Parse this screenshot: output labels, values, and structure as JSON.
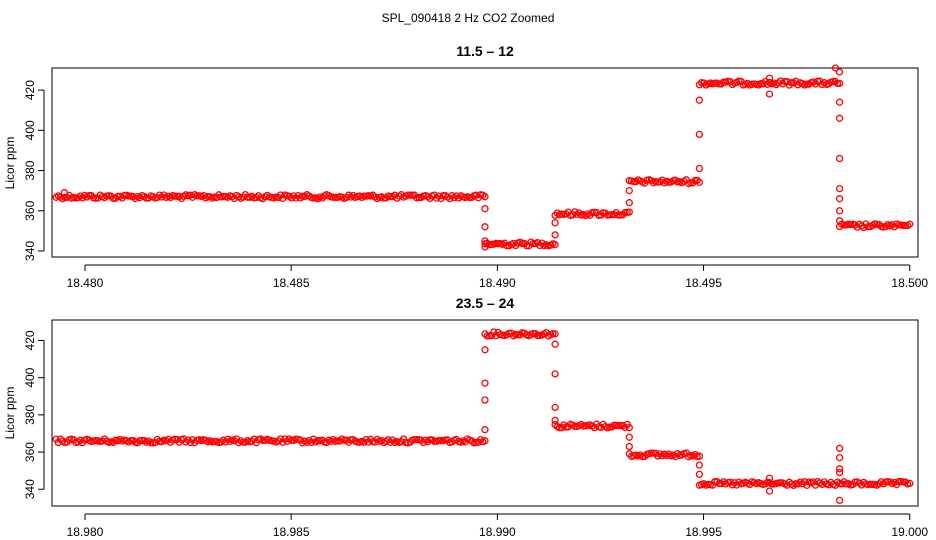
{
  "figure": {
    "suptitle": "SPL_090418  2 Hz CO2 Zoomed",
    "point_color": "#ff0000"
  },
  "chart_data": [
    {
      "type": "scatter",
      "title": "11.5 – 12",
      "xlabel": "",
      "ylabel": "Licor ppm",
      "xlim": [
        18.4792,
        18.5002
      ],
      "ylim": [
        337,
        431
      ],
      "xticks": [
        18.48,
        18.485,
        18.49,
        18.495,
        18.5
      ],
      "xtick_labels": [
        "18.480",
        "18.485",
        "18.490",
        "18.495",
        "18.500"
      ],
      "yticks": [
        340,
        360,
        380,
        400,
        420
      ],
      "ytick_labels": [
        "340",
        "360",
        "380",
        "400",
        "420"
      ],
      "marker": "open-circle",
      "grid": false,
      "segments": [
        {
          "x_start": 18.4793,
          "x_end": 18.4897,
          "y": 367
        },
        {
          "x_start": 18.4897,
          "x_end": 18.4914,
          "y": 343.5
        },
        {
          "x_start": 18.4914,
          "x_end": 18.4932,
          "y": 358.5
        },
        {
          "x_start": 18.4932,
          "x_end": 18.4949,
          "y": 374.5
        },
        {
          "x_start": 18.4949,
          "x_end": 18.4983,
          "y": 423.5
        },
        {
          "x_start": 18.4983,
          "x_end": 18.5,
          "y": 352.5
        }
      ],
      "transition_points": [
        {
          "x": 18.4897,
          "y": 361
        },
        {
          "x": 18.4897,
          "y": 352
        },
        {
          "x": 18.4897,
          "y": 345
        },
        {
          "x": 18.4914,
          "y": 348
        },
        {
          "x": 18.4914,
          "y": 354
        },
        {
          "x": 18.4932,
          "y": 364
        },
        {
          "x": 18.4932,
          "y": 370
        },
        {
          "x": 18.4949,
          "y": 381
        },
        {
          "x": 18.4949,
          "y": 398
        },
        {
          "x": 18.4949,
          "y": 415
        },
        {
          "x": 18.4983,
          "y": 414
        },
        {
          "x": 18.4983,
          "y": 406
        },
        {
          "x": 18.4983,
          "y": 386
        },
        {
          "x": 18.4983,
          "y": 371
        },
        {
          "x": 18.4983,
          "y": 366
        },
        {
          "x": 18.4983,
          "y": 360
        },
        {
          "x": 18.4983,
          "y": 355
        }
      ],
      "outliers": [
        {
          "x": 18.4795,
          "y": 369
        },
        {
          "x": 18.4897,
          "y": 342
        },
        {
          "x": 18.4966,
          "y": 426
        },
        {
          "x": 18.4966,
          "y": 418
        },
        {
          "x": 18.4982,
          "y": 431
        },
        {
          "x": 18.4983,
          "y": 429
        }
      ]
    },
    {
      "type": "scatter",
      "title": "23.5 – 24",
      "xlabel": "",
      "ylabel": "Licor ppm",
      "xlim": [
        18.9792,
        19.0002
      ],
      "ylim": [
        331,
        431
      ],
      "xticks": [
        18.98,
        18.985,
        18.99,
        18.995,
        19.0
      ],
      "xtick_labels": [
        "18.980",
        "18.985",
        "18.990",
        "18.995",
        "19.000"
      ],
      "yticks": [
        340,
        360,
        380,
        400,
        420
      ],
      "ytick_labels": [
        "340",
        "360",
        "380",
        "400",
        "420"
      ],
      "marker": "open-circle",
      "grid": false,
      "segments": [
        {
          "x_start": 18.9793,
          "x_end": 18.9897,
          "y": 366
        },
        {
          "x_start": 18.9897,
          "x_end": 18.9914,
          "y": 423.5
        },
        {
          "x_start": 18.9914,
          "x_end": 18.9932,
          "y": 374
        },
        {
          "x_start": 18.9932,
          "x_end": 18.9949,
          "y": 358.5
        },
        {
          "x_start": 18.9949,
          "x_end": 19.0,
          "y": 343
        }
      ],
      "transition_points": [
        {
          "x": 18.9897,
          "y": 372
        },
        {
          "x": 18.9897,
          "y": 388
        },
        {
          "x": 18.9897,
          "y": 397
        },
        {
          "x": 18.9897,
          "y": 415
        },
        {
          "x": 18.9914,
          "y": 418
        },
        {
          "x": 18.9914,
          "y": 402
        },
        {
          "x": 18.9914,
          "y": 384
        },
        {
          "x": 18.9914,
          "y": 377
        },
        {
          "x": 18.9932,
          "y": 368
        },
        {
          "x": 18.9932,
          "y": 363
        },
        {
          "x": 18.9949,
          "y": 353
        },
        {
          "x": 18.9949,
          "y": 348
        }
      ],
      "outliers": [
        {
          "x": 18.9966,
          "y": 346
        },
        {
          "x": 18.9966,
          "y": 339
        },
        {
          "x": 18.9983,
          "y": 362
        },
        {
          "x": 18.9983,
          "y": 357
        },
        {
          "x": 18.9983,
          "y": 351
        },
        {
          "x": 18.9983,
          "y": 349
        },
        {
          "x": 18.9983,
          "y": 334
        }
      ]
    }
  ]
}
